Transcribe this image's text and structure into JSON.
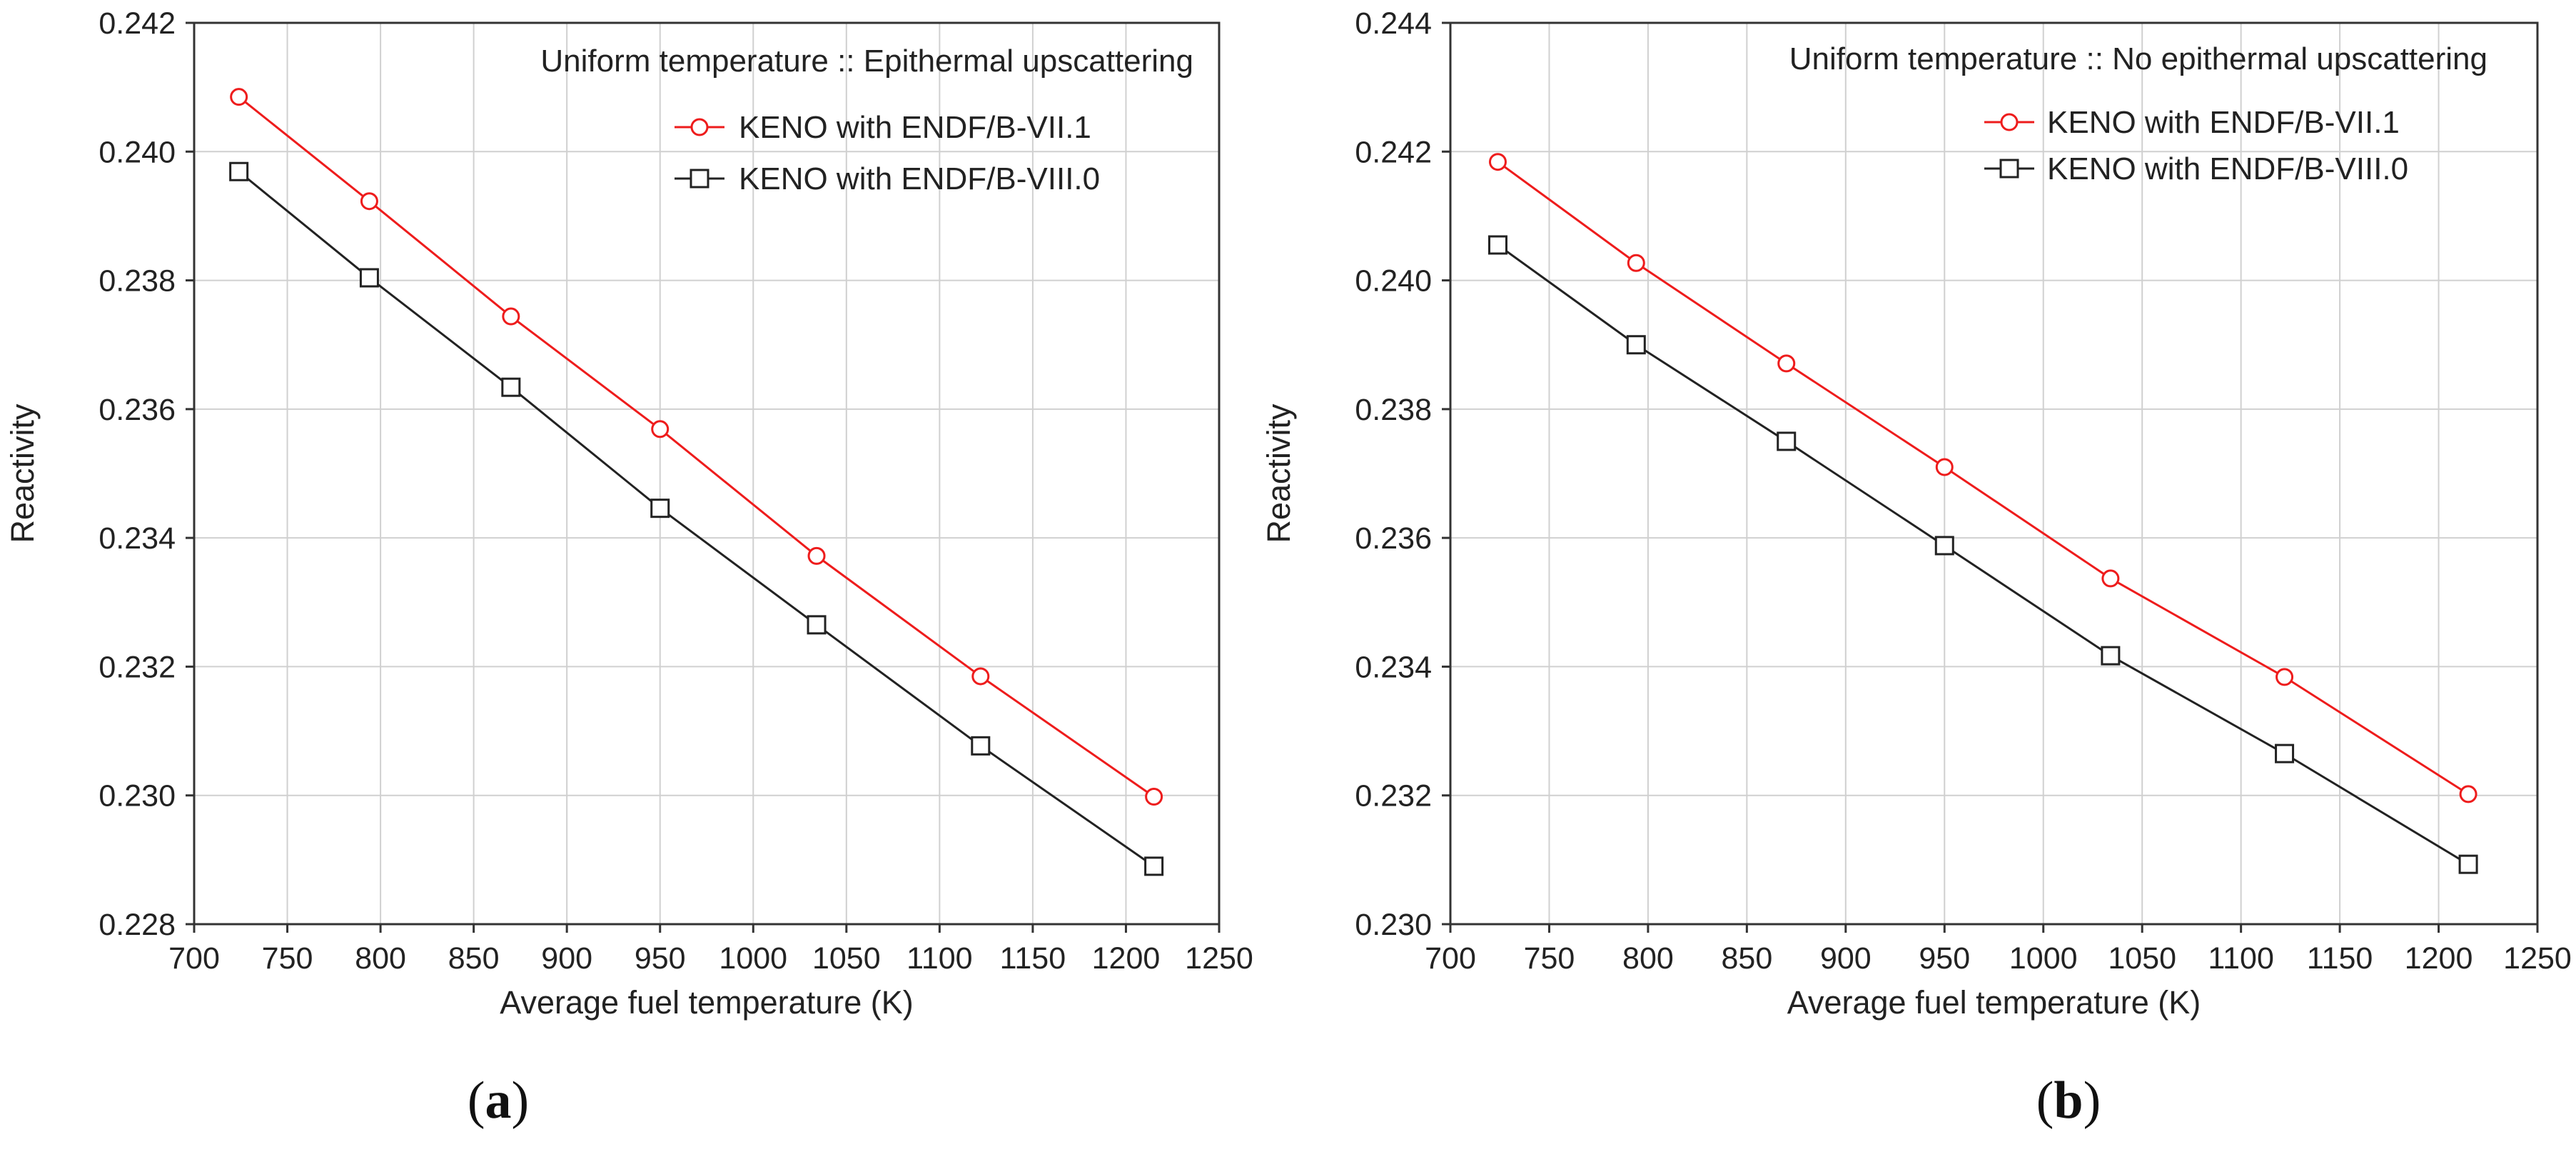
{
  "chart_data": [
    {
      "type": "line",
      "panel_label_open": "(",
      "panel_label_letter": "a",
      "panel_label_close": ")",
      "annotation": "Uniform temperature :: Epithermal upscattering",
      "xlabel": "Average fuel temperature (K)",
      "ylabel": "Reactivity",
      "xlim": [
        700,
        1250
      ],
      "ylim": [
        0.228,
        0.242
      ],
      "x_ticks": [
        700,
        750,
        800,
        850,
        900,
        950,
        1000,
        1050,
        1100,
        1150,
        1200,
        1250
      ],
      "x_tick_labels": [
        "700",
        "750",
        "800",
        "850",
        "900",
        "950",
        "1000",
        "1050",
        "1100",
        "1150",
        "1200",
        "1250"
      ],
      "y_ticks": [
        0.228,
        0.23,
        0.232,
        0.234,
        0.236,
        0.238,
        0.24,
        0.242
      ],
      "y_tick_labels": [
        "0.228",
        "0.230",
        "0.232",
        "0.234",
        "0.236",
        "0.238",
        "0.240",
        "0.242"
      ],
      "grid": true,
      "legend_position": "top-right",
      "series": [
        {
          "name": "KENO with ENDF/B-VII.1",
          "color": "#ee1c1c",
          "marker": "circle",
          "x": [
            724,
            794,
            870,
            950,
            1034,
            1122,
            1215
          ],
          "y": [
            0.24085,
            0.23923,
            0.23744,
            0.23569,
            0.23372,
            0.23185,
            0.22998
          ]
        },
        {
          "name": "KENO with ENDF/B-VIII.0",
          "color": "#222222",
          "marker": "square",
          "x": [
            724,
            794,
            870,
            950,
            1034,
            1122,
            1215
          ],
          "y": [
            0.23969,
            0.23804,
            0.23634,
            0.23446,
            0.23265,
            0.23077,
            0.2289
          ]
        }
      ]
    },
    {
      "type": "line",
      "panel_label_open": "(",
      "panel_label_letter": "b",
      "panel_label_close": ")",
      "annotation": "Uniform temperature :: No epithermal upscattering",
      "xlabel": "Average fuel temperature (K)",
      "ylabel": "Reactivity",
      "xlim": [
        700,
        1250
      ],
      "ylim": [
        0.23,
        0.244
      ],
      "x_ticks": [
        700,
        750,
        800,
        850,
        900,
        950,
        1000,
        1050,
        1100,
        1150,
        1200,
        1250
      ],
      "x_tick_labels": [
        "700",
        "750",
        "800",
        "850",
        "900",
        "950",
        "1000",
        "1050",
        "1100",
        "1150",
        "1200",
        "1250"
      ],
      "y_ticks": [
        0.23,
        0.232,
        0.234,
        0.236,
        0.238,
        0.24,
        0.242,
        0.244
      ],
      "y_tick_labels": [
        "0.230",
        "0.232",
        "0.234",
        "0.236",
        "0.238",
        "0.240",
        "0.242",
        "0.244"
      ],
      "grid": true,
      "legend_position": "top-right",
      "series": [
        {
          "name": "KENO with ENDF/B-VII.1",
          "color": "#ee1c1c",
          "marker": "circle",
          "x": [
            724,
            794,
            870,
            950,
            1034,
            1122,
            1215
          ],
          "y": [
            0.24184,
            0.24027,
            0.23871,
            0.2371,
            0.23537,
            0.23384,
            0.23202
          ]
        },
        {
          "name": "KENO with ENDF/B-VIII.0",
          "color": "#222222",
          "marker": "square",
          "x": [
            724,
            794,
            870,
            950,
            1034,
            1122,
            1215
          ],
          "y": [
            0.24055,
            0.239,
            0.2375,
            0.23588,
            0.23417,
            0.23265,
            0.23093
          ]
        }
      ]
    }
  ]
}
